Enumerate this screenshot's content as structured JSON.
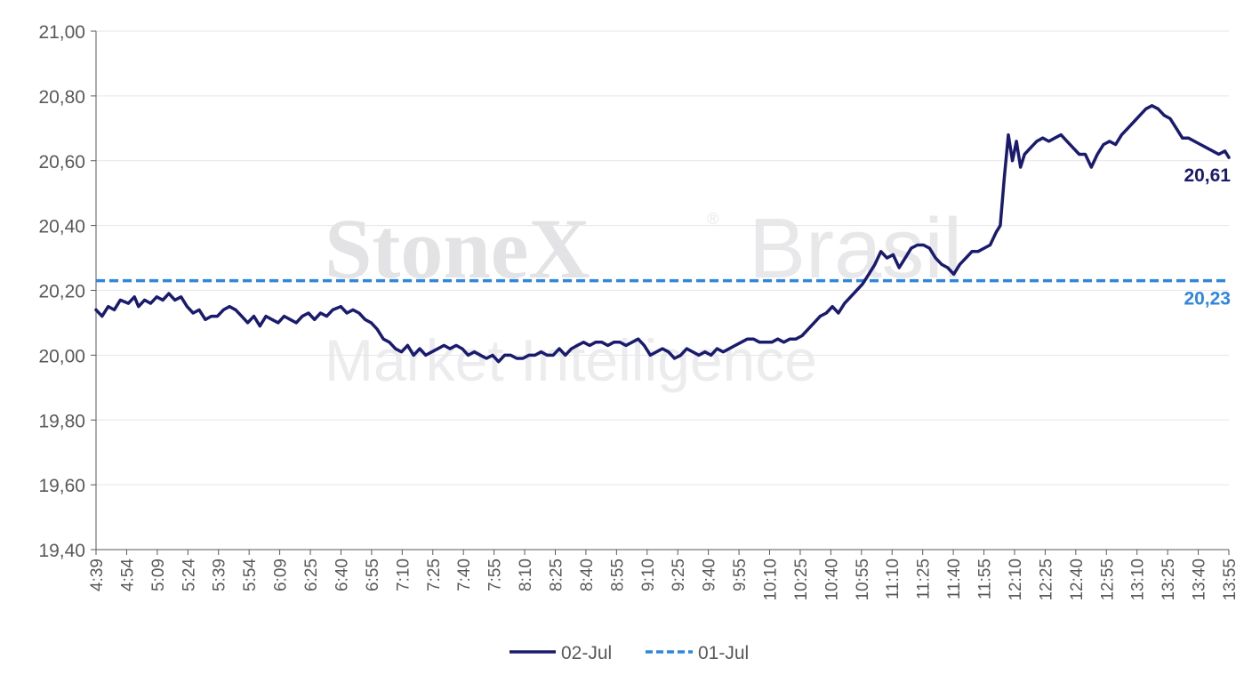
{
  "watermark": {
    "brand": "StoneX",
    "brand_suffix": "Brasil",
    "registered": "®",
    "tagline": "Market Intelligence"
  },
  "colors": {
    "series_main": "#1a1a6e",
    "series_ref": "#2e86de",
    "axis": "#595959",
    "grid": "#e6e6e6",
    "label_main": "#1a1a6e",
    "label_ref": "#2e86de"
  },
  "chart_data": {
    "type": "line",
    "title": "",
    "xlabel": "",
    "ylabel": "",
    "ylim": [
      19.4,
      21.0
    ],
    "y_ticks": [
      "21,00",
      "20,80",
      "20,60",
      "20,40",
      "20,20",
      "20,00",
      "19,80",
      "19,60",
      "19,40"
    ],
    "y_tick_values": [
      21.0,
      20.8,
      20.6,
      20.4,
      20.2,
      20.0,
      19.8,
      19.6,
      19.4
    ],
    "x_start": "4:39",
    "x_end": "13:59",
    "x_tick_labels": [
      "4:39",
      "4:54",
      "5:09",
      "5:24",
      "5:39",
      "5:54",
      "6:09",
      "6:25",
      "6:40",
      "6:55",
      "7:10",
      "7:25",
      "7:40",
      "7:55",
      "8:10",
      "8:25",
      "8:40",
      "8:55",
      "9:10",
      "9:25",
      "9:40",
      "9:55",
      "10:10",
      "10:25",
      "10:40",
      "10:55",
      "11:10",
      "11:25",
      "11:40",
      "11:55",
      "12:10",
      "12:25",
      "12:40",
      "12:55",
      "13:10",
      "13:25",
      "13:40",
      "13:55"
    ],
    "grid": true,
    "legend_position": "bottom",
    "series": [
      {
        "name": "02-Jul",
        "style": "solid",
        "points": [
          [
            "4:39",
            20.14
          ],
          [
            "4:42",
            20.12
          ],
          [
            "4:45",
            20.15
          ],
          [
            "4:48",
            20.14
          ],
          [
            "4:51",
            20.17
          ],
          [
            "4:55",
            20.16
          ],
          [
            "4:58",
            20.18
          ],
          [
            "5:00",
            20.15
          ],
          [
            "5:03",
            20.17
          ],
          [
            "5:06",
            20.16
          ],
          [
            "5:09",
            20.18
          ],
          [
            "5:12",
            20.17
          ],
          [
            "5:15",
            20.19
          ],
          [
            "5:18",
            20.17
          ],
          [
            "5:21",
            20.18
          ],
          [
            "5:24",
            20.15
          ],
          [
            "5:27",
            20.13
          ],
          [
            "5:30",
            20.14
          ],
          [
            "5:33",
            20.11
          ],
          [
            "5:36",
            20.12
          ],
          [
            "5:39",
            20.12
          ],
          [
            "5:42",
            20.14
          ],
          [
            "5:45",
            20.15
          ],
          [
            "5:48",
            20.14
          ],
          [
            "5:51",
            20.12
          ],
          [
            "5:54",
            20.1
          ],
          [
            "5:57",
            20.12
          ],
          [
            "6:00",
            20.09
          ],
          [
            "6:03",
            20.12
          ],
          [
            "6:06",
            20.11
          ],
          [
            "6:09",
            20.1
          ],
          [
            "6:12",
            20.12
          ],
          [
            "6:15",
            20.11
          ],
          [
            "6:18",
            20.1
          ],
          [
            "6:21",
            20.12
          ],
          [
            "6:24",
            20.13
          ],
          [
            "6:27",
            20.11
          ],
          [
            "6:30",
            20.13
          ],
          [
            "6:33",
            20.12
          ],
          [
            "6:36",
            20.14
          ],
          [
            "6:40",
            20.15
          ],
          [
            "6:43",
            20.13
          ],
          [
            "6:46",
            20.14
          ],
          [
            "6:49",
            20.13
          ],
          [
            "6:52",
            20.11
          ],
          [
            "6:55",
            20.1
          ],
          [
            "6:58",
            20.08
          ],
          [
            "7:01",
            20.05
          ],
          [
            "7:04",
            20.04
          ],
          [
            "7:07",
            20.02
          ],
          [
            "7:10",
            20.01
          ],
          [
            "7:13",
            20.03
          ],
          [
            "7:16",
            20.0
          ],
          [
            "7:19",
            20.02
          ],
          [
            "7:22",
            20.0
          ],
          [
            "7:25",
            20.01
          ],
          [
            "7:28",
            20.02
          ],
          [
            "7:31",
            20.03
          ],
          [
            "7:34",
            20.02
          ],
          [
            "7:37",
            20.03
          ],
          [
            "7:40",
            20.02
          ],
          [
            "7:43",
            20.0
          ],
          [
            "7:46",
            20.01
          ],
          [
            "7:49",
            20.0
          ],
          [
            "7:52",
            19.99
          ],
          [
            "7:55",
            20.0
          ],
          [
            "7:58",
            19.98
          ],
          [
            "8:01",
            20.0
          ],
          [
            "8:04",
            20.0
          ],
          [
            "8:07",
            19.99
          ],
          [
            "8:10",
            19.99
          ],
          [
            "8:13",
            20.0
          ],
          [
            "8:16",
            20.0
          ],
          [
            "8:19",
            20.01
          ],
          [
            "8:22",
            20.0
          ],
          [
            "8:25",
            20.0
          ],
          [
            "8:28",
            20.02
          ],
          [
            "8:31",
            20.0
          ],
          [
            "8:34",
            20.02
          ],
          [
            "8:37",
            20.03
          ],
          [
            "8:40",
            20.04
          ],
          [
            "8:43",
            20.03
          ],
          [
            "8:46",
            20.04
          ],
          [
            "8:49",
            20.04
          ],
          [
            "8:52",
            20.03
          ],
          [
            "8:55",
            20.04
          ],
          [
            "8:58",
            20.04
          ],
          [
            "9:01",
            20.03
          ],
          [
            "9:04",
            20.04
          ],
          [
            "9:07",
            20.05
          ],
          [
            "9:10",
            20.03
          ],
          [
            "9:13",
            20.0
          ],
          [
            "9:16",
            20.01
          ],
          [
            "9:19",
            20.02
          ],
          [
            "9:22",
            20.01
          ],
          [
            "9:25",
            19.99
          ],
          [
            "9:28",
            20.0
          ],
          [
            "9:31",
            20.02
          ],
          [
            "9:34",
            20.01
          ],
          [
            "9:37",
            20.0
          ],
          [
            "9:40",
            20.01
          ],
          [
            "9:43",
            20.0
          ],
          [
            "9:46",
            20.02
          ],
          [
            "9:49",
            20.01
          ],
          [
            "9:52",
            20.02
          ],
          [
            "9:55",
            20.03
          ],
          [
            "9:58",
            20.04
          ],
          [
            "10:01",
            20.05
          ],
          [
            "10:04",
            20.05
          ],
          [
            "10:07",
            20.04
          ],
          [
            "10:10",
            20.04
          ],
          [
            "10:13",
            20.04
          ],
          [
            "10:16",
            20.05
          ],
          [
            "10:19",
            20.04
          ],
          [
            "10:22",
            20.05
          ],
          [
            "10:25",
            20.05
          ],
          [
            "10:28",
            20.06
          ],
          [
            "10:31",
            20.08
          ],
          [
            "10:34",
            20.1
          ],
          [
            "10:37",
            20.12
          ],
          [
            "10:40",
            20.13
          ],
          [
            "10:43",
            20.15
          ],
          [
            "10:46",
            20.13
          ],
          [
            "10:49",
            20.16
          ],
          [
            "10:52",
            20.18
          ],
          [
            "10:55",
            20.2
          ],
          [
            "10:58",
            20.22
          ],
          [
            "11:01",
            20.25
          ],
          [
            "11:04",
            20.28
          ],
          [
            "11:07",
            20.32
          ],
          [
            "11:10",
            20.3
          ],
          [
            "11:13",
            20.31
          ],
          [
            "11:16",
            20.27
          ],
          [
            "11:19",
            20.3
          ],
          [
            "11:22",
            20.33
          ],
          [
            "11:25",
            20.34
          ],
          [
            "11:28",
            20.34
          ],
          [
            "11:31",
            20.33
          ],
          [
            "11:34",
            20.3
          ],
          [
            "11:37",
            20.28
          ],
          [
            "11:40",
            20.27
          ],
          [
            "11:43",
            20.25
          ],
          [
            "11:46",
            20.28
          ],
          [
            "11:49",
            20.3
          ],
          [
            "11:52",
            20.32
          ],
          [
            "11:55",
            20.32
          ],
          [
            "11:58",
            20.33
          ],
          [
            "12:01",
            20.34
          ],
          [
            "12:04",
            20.38
          ],
          [
            "12:06",
            20.4
          ],
          [
            "12:08",
            20.55
          ],
          [
            "12:10",
            20.68
          ],
          [
            "12:12",
            20.6
          ],
          [
            "12:14",
            20.66
          ],
          [
            "12:16",
            20.58
          ],
          [
            "12:18",
            20.62
          ],
          [
            "12:21",
            20.64
          ],
          [
            "12:24",
            20.66
          ],
          [
            "12:27",
            20.67
          ],
          [
            "12:30",
            20.66
          ],
          [
            "12:33",
            20.67
          ],
          [
            "12:36",
            20.68
          ],
          [
            "12:39",
            20.66
          ],
          [
            "12:42",
            20.64
          ],
          [
            "12:45",
            20.62
          ],
          [
            "12:48",
            20.62
          ],
          [
            "12:51",
            20.58
          ],
          [
            "12:54",
            20.62
          ],
          [
            "12:57",
            20.65
          ],
          [
            "13:00",
            20.66
          ],
          [
            "13:03",
            20.65
          ],
          [
            "13:06",
            20.68
          ],
          [
            "13:09",
            20.7
          ],
          [
            "13:12",
            20.72
          ],
          [
            "13:15",
            20.74
          ],
          [
            "13:18",
            20.76
          ],
          [
            "13:21",
            20.77
          ],
          [
            "13:24",
            20.76
          ],
          [
            "13:27",
            20.74
          ],
          [
            "13:30",
            20.73
          ],
          [
            "13:33",
            20.7
          ],
          [
            "13:36",
            20.67
          ],
          [
            "13:39",
            20.67
          ],
          [
            "13:42",
            20.66
          ],
          [
            "13:45",
            20.65
          ],
          [
            "13:48",
            20.64
          ],
          [
            "13:51",
            20.63
          ],
          [
            "13:54",
            20.62
          ],
          [
            "13:57",
            20.63
          ],
          [
            "13:59",
            20.61
          ]
        ],
        "last_value_label": "20,61"
      },
      {
        "name": "01-Jul",
        "style": "dashed",
        "constant_value": 20.23,
        "last_value_label": "20,23"
      }
    ]
  }
}
